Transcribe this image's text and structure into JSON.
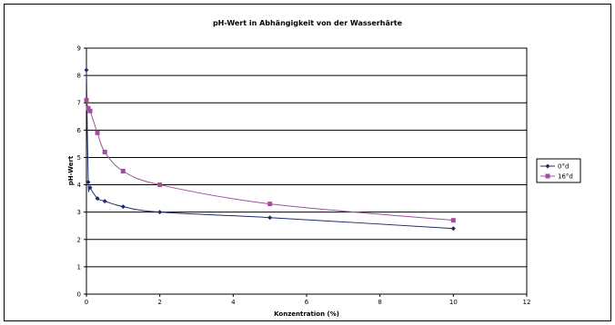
{
  "chart_data": {
    "type": "line",
    "title": "pH-Wert in Abhängigkeit von der Wasserhärte",
    "xlabel": "Konzentration (%)",
    "ylabel": "pH-Wert",
    "xlim": [
      0,
      12
    ],
    "ylim": [
      0,
      9
    ],
    "xticks": [
      0,
      2,
      4,
      6,
      8,
      10,
      12
    ],
    "yticks": [
      0,
      1,
      2,
      3,
      4,
      5,
      6,
      7,
      8,
      9
    ],
    "grid": "horizontal",
    "legend_position": "right",
    "series": [
      {
        "name": "0°d",
        "color": "#1f2a6b",
        "marker": "diamond",
        "points": [
          [
            0,
            8.2
          ],
          [
            0.05,
            4.1
          ],
          [
            0.1,
            3.9
          ],
          [
            0.3,
            3.5
          ],
          [
            0.5,
            3.4
          ],
          [
            1,
            3.2
          ],
          [
            2,
            3.0
          ],
          [
            5,
            2.8
          ],
          [
            10,
            2.4
          ]
        ]
      },
      {
        "name": "16°d",
        "color": "#a0509a",
        "marker": "square",
        "points": [
          [
            0,
            7.1
          ],
          [
            0.05,
            6.8
          ],
          [
            0.1,
            6.7
          ],
          [
            0.3,
            5.9
          ],
          [
            0.5,
            5.2
          ],
          [
            1,
            4.5
          ],
          [
            2,
            4.0
          ],
          [
            5,
            3.3
          ],
          [
            10,
            2.7
          ]
        ]
      }
    ]
  }
}
